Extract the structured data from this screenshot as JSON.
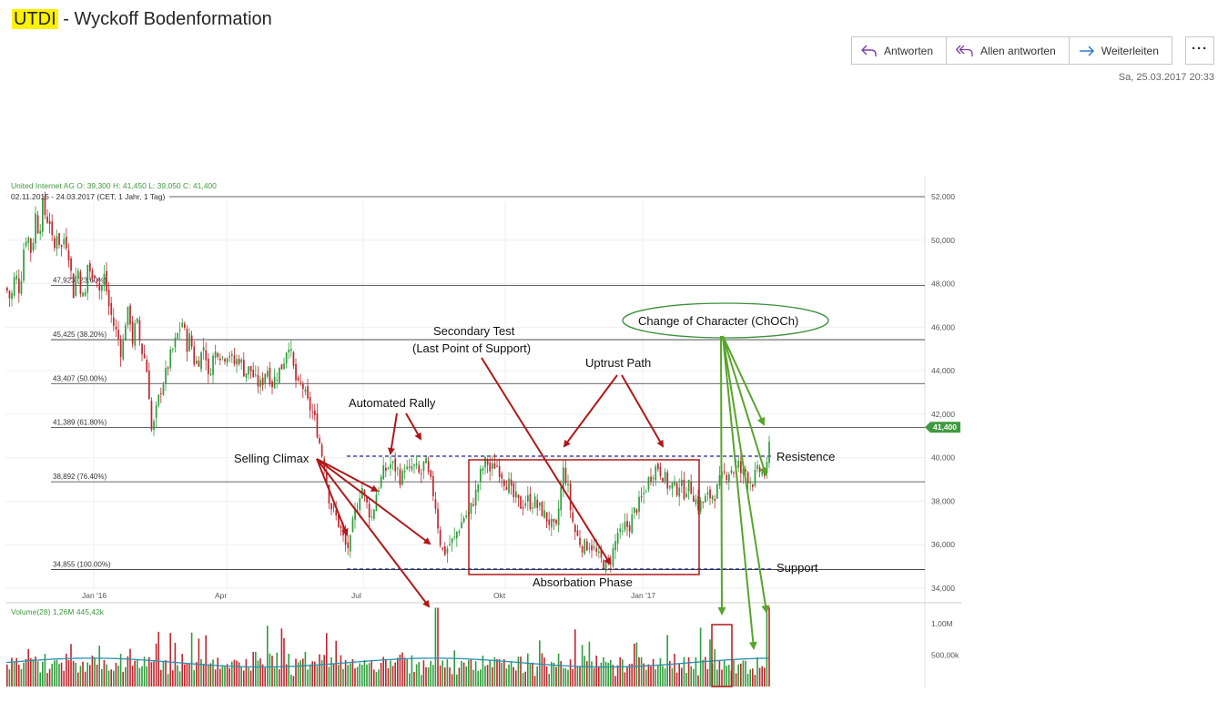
{
  "subject": {
    "ticker": "UTDI",
    "rest": " - Wyckoff Bodenformation"
  },
  "actions": {
    "reply": "Antworten",
    "reply_all": "Allen antworten",
    "forward": "Weiterleiten",
    "more": "···"
  },
  "sent_date": "Sa, 25.03.2017 20:33",
  "colors": {
    "up": "#2e9d3c",
    "down": "#c0262d",
    "annotation_red": "#b01818",
    "annotation_green": "#58a52b",
    "accent_blue": "#4a7cc9",
    "highlight": "#fff200"
  },
  "icons": {
    "reply": "reply-arrow-icon",
    "reply_all": "reply-all-icon",
    "forward": "forward-arrow-icon",
    "more": "ellipsis-icon"
  },
  "chart_data": {
    "type": "candlestick",
    "title": "United Internet AG  O: 39,300  H: 41,450  L: 39,050  C: 41,400",
    "subtitle": "02.11.2015 - 24.03.2017   (CET, 1 Jahr, 1 Tag)",
    "x_ticks": [
      "Jan '16",
      "Apr",
      "Jul",
      "Okt",
      "Jan '17"
    ],
    "y_ticks": [
      "52,000",
      "50,000",
      "48,000",
      "46,000",
      "44,000",
      "42,000",
      "40,000",
      "38,000",
      "36,000",
      "34,000"
    ],
    "ylim": [
      33500,
      52500
    ],
    "last_price_tag": "41,400",
    "fib_levels": [
      {
        "label": "47,923 (23.60%)",
        "value": 47923
      },
      {
        "label": "45,425 (38.20%)",
        "value": 45425
      },
      {
        "label": "43,407 (50.00%)",
        "value": 43407
      },
      {
        "label": "41,389 (61.80%)",
        "value": 41389
      },
      {
        "label": "38,892 (76.40%)",
        "value": 38892
      },
      {
        "label": "34,855 (100.00%)",
        "value": 34855
      }
    ],
    "resistance": 40070,
    "support": 34880,
    "price_path": [
      [
        0,
        47800
      ],
      [
        5,
        47200
      ],
      [
        10,
        48500
      ],
      [
        15,
        47600
      ],
      [
        19,
        49600
      ],
      [
        23,
        50400
      ],
      [
        28,
        49300
      ],
      [
        32,
        51200
      ],
      [
        36,
        50300
      ],
      [
        40,
        51600
      ],
      [
        44,
        51000
      ],
      [
        48,
        50900
      ],
      [
        52,
        49300
      ],
      [
        56,
        50500
      ],
      [
        60,
        49500
      ],
      [
        64,
        50200
      ],
      [
        68,
        49600
      ],
      [
        74,
        47500
      ],
      [
        78,
        48900
      ],
      [
        82,
        47700
      ],
      [
        86,
        47100
      ],
      [
        90,
        49200
      ],
      [
        94,
        48000
      ],
      [
        98,
        48700
      ],
      [
        103,
        47600
      ],
      [
        108,
        48400
      ],
      [
        112,
        47100
      ],
      [
        118,
        46100
      ],
      [
        123,
        45500
      ],
      [
        127,
        44700
      ],
      [
        131,
        46300
      ],
      [
        135,
        46800
      ],
      [
        139,
        45300
      ],
      [
        143,
        46400
      ],
      [
        148,
        45000
      ],
      [
        152,
        44600
      ],
      [
        156,
        43600
      ],
      [
        160,
        41000
      ],
      [
        165,
        42200
      ],
      [
        170,
        43200
      ],
      [
        175,
        43800
      ],
      [
        180,
        44600
      ],
      [
        185,
        45200
      ],
      [
        190,
        45900
      ],
      [
        194,
        46300
      ],
      [
        198,
        45100
      ],
      [
        202,
        45600
      ],
      [
        207,
        44300
      ],
      [
        213,
        44600
      ],
      [
        218,
        45300
      ],
      [
        222,
        43600
      ],
      [
        226,
        44500
      ],
      [
        232,
        45000
      ],
      [
        238,
        44600
      ],
      [
        244,
        44900
      ],
      [
        250,
        44300
      ],
      [
        256,
        44600
      ],
      [
        262,
        43900
      ],
      [
        268,
        44100
      ],
      [
        274,
        43500
      ],
      [
        280,
        43300
      ],
      [
        286,
        44200
      ],
      [
        292,
        43400
      ],
      [
        298,
        43900
      ],
      [
        304,
        44300
      ],
      [
        310,
        45400
      ],
      [
        315,
        44200
      ],
      [
        320,
        43200
      ],
      [
        325,
        43400
      ],
      [
        330,
        42600
      ],
      [
        336,
        42100
      ],
      [
        340,
        41600
      ],
      [
        346,
        40300
      ],
      [
        350,
        39600
      ],
      [
        354,
        38300
      ],
      [
        358,
        37600
      ],
      [
        362,
        37300
      ],
      [
        366,
        36900
      ],
      [
        370,
        36300
      ],
      [
        374,
        35800
      ],
      [
        378,
        36100
      ],
      [
        382,
        37300
      ],
      [
        386,
        37800
      ],
      [
        390,
        38800
      ],
      [
        394,
        38100
      ],
      [
        398,
        37600
      ],
      [
        402,
        37200
      ],
      [
        406,
        38300
      ],
      [
        410,
        38800
      ],
      [
        414,
        39300
      ],
      [
        418,
        39500
      ],
      [
        422,
        39700
      ],
      [
        426,
        39600
      ],
      [
        430,
        39400
      ],
      [
        434,
        38900
      ],
      [
        438,
        39700
      ],
      [
        442,
        39200
      ],
      [
        446,
        39600
      ],
      [
        450,
        39500
      ],
      [
        455,
        39100
      ],
      [
        460,
        39900
      ],
      [
        464,
        39100
      ],
      [
        468,
        38600
      ],
      [
        472,
        37700
      ],
      [
        476,
        36300
      ],
      [
        480,
        35600
      ],
      [
        484,
        35800
      ],
      [
        488,
        36100
      ],
      [
        492,
        36200
      ],
      [
        496,
        36700
      ],
      [
        500,
        37000
      ],
      [
        504,
        37400
      ],
      [
        508,
        37300
      ],
      [
        512,
        37900
      ],
      [
        516,
        38400
      ],
      [
        520,
        39100
      ],
      [
        524,
        39600
      ],
      [
        528,
        39900
      ],
      [
        532,
        39300
      ],
      [
        536,
        39700
      ],
      [
        540,
        39600
      ],
      [
        544,
        39300
      ],
      [
        548,
        38900
      ],
      [
        552,
        38800
      ],
      [
        556,
        38200
      ],
      [
        560,
        38100
      ],
      [
        564,
        37800
      ],
      [
        568,
        37900
      ],
      [
        572,
        38100
      ],
      [
        576,
        37900
      ],
      [
        580,
        38000
      ],
      [
        584,
        37700
      ],
      [
        588,
        37600
      ],
      [
        592,
        37300
      ],
      [
        596,
        37100
      ],
      [
        600,
        36800
      ],
      [
        604,
        36600
      ],
      [
        608,
        38100
      ],
      [
        612,
        39400
      ],
      [
        616,
        38900
      ],
      [
        620,
        37600
      ],
      [
        624,
        36700
      ],
      [
        628,
        36300
      ],
      [
        632,
        36000
      ],
      [
        636,
        35900
      ],
      [
        640,
        36100
      ],
      [
        644,
        35900
      ],
      [
        648,
        35600
      ],
      [
        652,
        35300
      ],
      [
        656,
        35200
      ],
      [
        660,
        34900
      ],
      [
        664,
        35400
      ],
      [
        668,
        35900
      ],
      [
        672,
        36600
      ],
      [
        676,
        36300
      ],
      [
        680,
        36900
      ],
      [
        684,
        36800
      ],
      [
        688,
        37300
      ],
      [
        692,
        37700
      ],
      [
        696,
        37900
      ],
      [
        700,
        38300
      ],
      [
        704,
        38800
      ],
      [
        708,
        39200
      ],
      [
        712,
        39500
      ],
      [
        716,
        39600
      ],
      [
        720,
        39300
      ],
      [
        724,
        39000
      ],
      [
        728,
        38600
      ],
      [
        732,
        38700
      ],
      [
        736,
        38500
      ],
      [
        740,
        38900
      ],
      [
        744,
        38400
      ],
      [
        748,
        38700
      ],
      [
        752,
        38600
      ],
      [
        756,
        38200
      ],
      [
        760,
        37800
      ],
      [
        764,
        37900
      ],
      [
        768,
        38100
      ],
      [
        772,
        38200
      ],
      [
        776,
        38300
      ],
      [
        780,
        38400
      ],
      [
        784,
        38900
      ],
      [
        788,
        39200
      ],
      [
        792,
        39300
      ],
      [
        796,
        39500
      ],
      [
        800,
        39400
      ],
      [
        804,
        39700
      ],
      [
        808,
        39200
      ],
      [
        812,
        39400
      ],
      [
        816,
        39000
      ],
      [
        820,
        38900
      ],
      [
        824,
        39300
      ],
      [
        828,
        39400
      ],
      [
        832,
        39200
      ],
      [
        836,
        39500
      ],
      [
        840,
        41400
      ]
    ],
    "volume_label": "Volume(28)  1,26M  445,42k",
    "volume_ticks": [
      "1,00M",
      "500,00k"
    ],
    "volume_ylim": [
      0,
      1300000
    ],
    "annotations": [
      "Automated Rally",
      "Selling Climax",
      "Secondary Test",
      "(Last Point of Support)",
      "Uptrust Path",
      "Change of Character (ChOCh)",
      "Resistence",
      "Support",
      "Absorbation Phase"
    ]
  }
}
